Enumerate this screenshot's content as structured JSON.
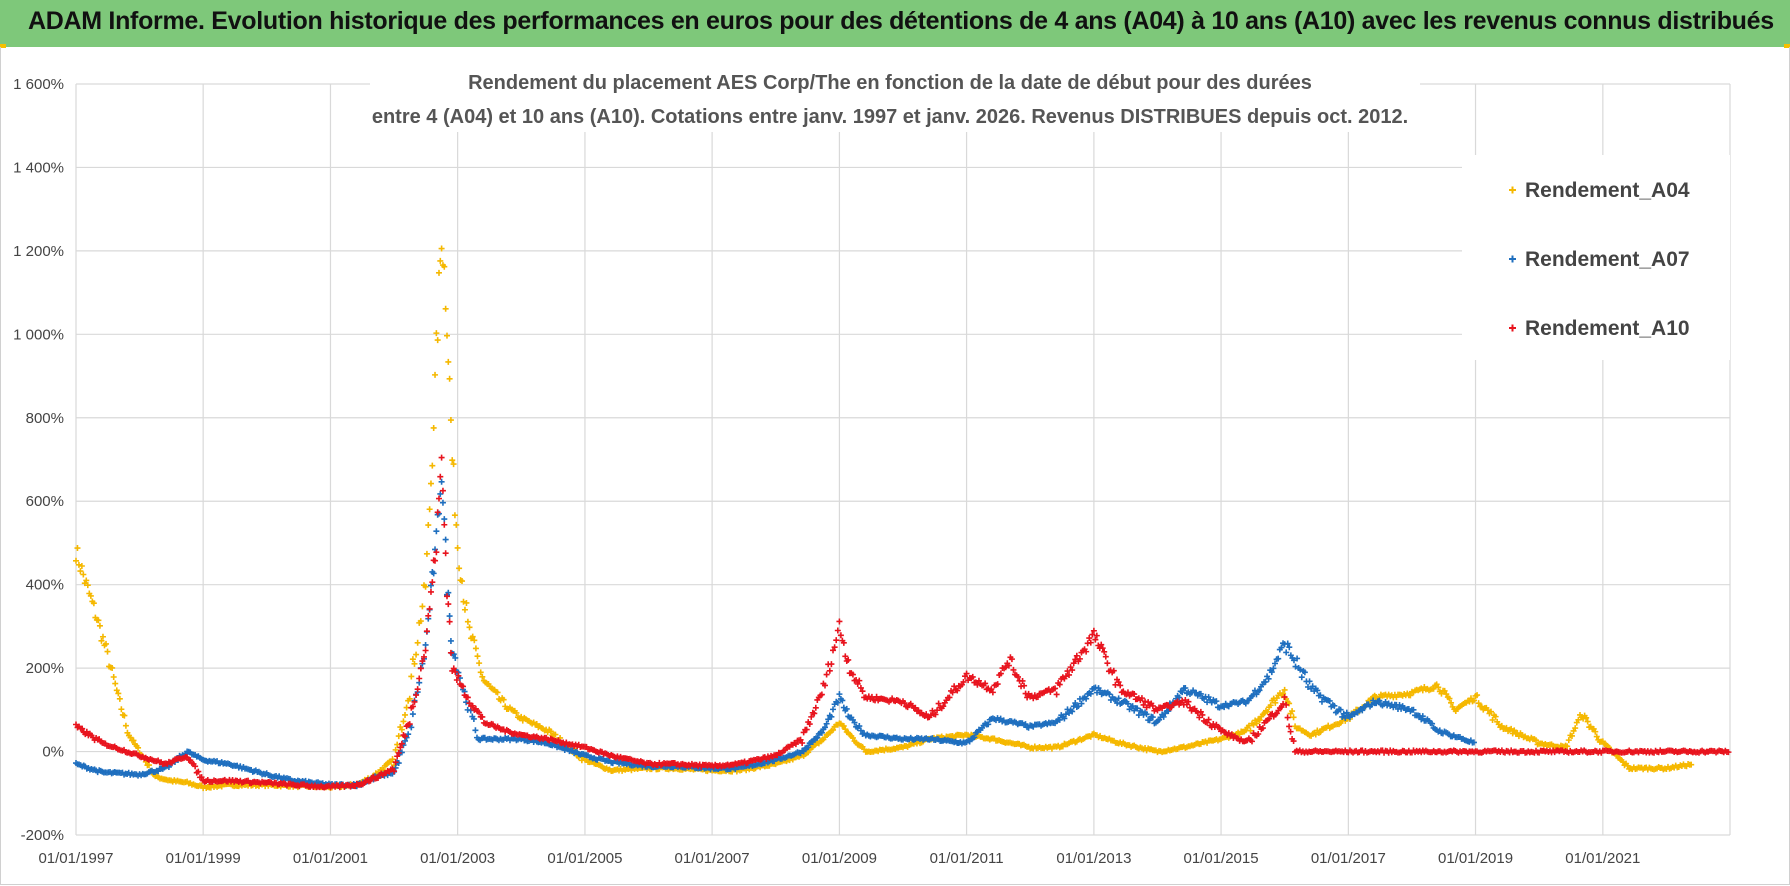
{
  "banner": {
    "title": "ADAM Informe. Evolution historique des performances en euros pour des détentions de 4 ans (A04) à 10 ans (A10) avec les revenus connus distribués"
  },
  "colors": {
    "banner_bg": "#7ec87a",
    "A04": "#f5b800",
    "A07": "#1f6fbf",
    "A10": "#e8141e",
    "grid": "#d9d9d9"
  },
  "chart_data": {
    "type": "scatter",
    "title_line1": "Rendement du placement AES Corp/The en fonction de la date de début pour des durées",
    "title_line2": "entre 4 (A04) et 10 ans (A10).  Cotations entre janv. 1997 et janv. 2026. Revenus DISTRIBUES depuis oct. 2012.",
    "xlabel": "",
    "ylabel": "",
    "x_range": [
      "1997-01-01",
      "2023-01-01"
    ],
    "ylim": [
      -2.0,
      16.0
    ],
    "y_ticks": [
      "-200%",
      "0%",
      "200%",
      "400%",
      "600%",
      "800%",
      "1 000%",
      "1 200%",
      "1 400%",
      "1 600%"
    ],
    "x_ticks": [
      "01/01/1997",
      "01/01/1999",
      "01/01/2001",
      "01/01/2003",
      "01/01/2005",
      "01/01/2007",
      "01/01/2009",
      "01/01/2011",
      "01/01/2013",
      "01/01/2015",
      "01/01/2017",
      "01/01/2019",
      "01/01/2021"
    ],
    "grid": true,
    "legend_position": "top-right",
    "series": [
      {
        "name": "Rendement_A04",
        "points": [
          [
            "1997-01-01",
            4.8
          ],
          [
            "1997-03-01",
            4.0
          ],
          [
            "1997-05-01",
            3.2
          ],
          [
            "1997-07-01",
            2.3
          ],
          [
            "1997-09-01",
            1.3
          ],
          [
            "1997-11-01",
            0.4
          ],
          [
            "1998-01-01",
            0.0
          ],
          [
            "1998-04-01",
            -0.6
          ],
          [
            "1998-07-01",
            -0.7
          ],
          [
            "1998-10-01",
            -0.75
          ],
          [
            "1999-01-01",
            -0.85
          ],
          [
            "1999-06-01",
            -0.8
          ],
          [
            "2000-01-01",
            -0.8
          ],
          [
            "2000-06-01",
            -0.82
          ],
          [
            "2001-01-01",
            -0.85
          ],
          [
            "2001-06-01",
            -0.8
          ],
          [
            "2001-09-01",
            -0.6
          ],
          [
            "2002-01-01",
            -0.2
          ],
          [
            "2002-04-01",
            1.5
          ],
          [
            "2002-07-01",
            4.0
          ],
          [
            "2002-08-01",
            6.5
          ],
          [
            "2002-09-01",
            9.5
          ],
          [
            "2002-10-01",
            12.5
          ],
          [
            "2002-11-01",
            10.5
          ],
          [
            "2002-12-01",
            7.0
          ],
          [
            "2003-01-01",
            5.0
          ],
          [
            "2003-03-01",
            3.0
          ],
          [
            "2003-06-01",
            1.7
          ],
          [
            "2003-10-01",
            1.1
          ],
          [
            "2004-01-01",
            0.8
          ],
          [
            "2004-06-01",
            0.5
          ],
          [
            "2005-01-01",
            -0.2
          ],
          [
            "2005-06-01",
            -0.45
          ],
          [
            "2006-01-01",
            -0.4
          ],
          [
            "2006-06-01",
            -0.4
          ],
          [
            "2007-01-01",
            -0.45
          ],
          [
            "2007-06-01",
            -0.45
          ],
          [
            "2008-01-01",
            -0.3
          ],
          [
            "2008-06-01",
            -0.1
          ],
          [
            "2008-10-01",
            0.3
          ],
          [
            "2009-01-01",
            0.7
          ],
          [
            "2009-03-01",
            0.4
          ],
          [
            "2009-06-01",
            0.0
          ],
          [
            "2010-01-01",
            0.1
          ],
          [
            "2010-06-01",
            0.3
          ],
          [
            "2011-01-01",
            0.4
          ],
          [
            "2011-06-01",
            0.3
          ],
          [
            "2012-01-01",
            0.1
          ],
          [
            "2012-06-01",
            0.1
          ],
          [
            "2013-01-01",
            0.4
          ],
          [
            "2013-06-01",
            0.2
          ],
          [
            "2014-01-01",
            0.0
          ],
          [
            "2014-06-01",
            0.1
          ],
          [
            "2015-01-01",
            0.3
          ],
          [
            "2015-06-01",
            0.5
          ],
          [
            "2016-01-01",
            1.5
          ],
          [
            "2016-03-01",
            0.6
          ],
          [
            "2016-06-01",
            0.4
          ],
          [
            "2017-01-01",
            0.8
          ],
          [
            "2017-06-01",
            1.3
          ],
          [
            "2018-01-01",
            1.4
          ],
          [
            "2018-06-01",
            1.6
          ],
          [
            "2018-09-01",
            1.0
          ],
          [
            "2019-01-01",
            1.3
          ],
          [
            "2019-06-01",
            0.6
          ],
          [
            "2020-01-01",
            0.2
          ],
          [
            "2020-06-01",
            0.1
          ],
          [
            "2020-09-01",
            0.9
          ],
          [
            "2021-01-01",
            0.2
          ],
          [
            "2021-06-01",
            -0.4
          ],
          [
            "2022-01-01",
            -0.4
          ],
          [
            "2022-06-01",
            -0.3
          ]
        ]
      },
      {
        "name": "Rendement_A07",
        "points": [
          [
            "1997-01-01",
            -0.3
          ],
          [
            "1997-06-01",
            -0.5
          ],
          [
            "1998-01-01",
            -0.55
          ],
          [
            "1998-06-01",
            -0.4
          ],
          [
            "1998-10-01",
            0.0
          ],
          [
            "1999-01-01",
            -0.2
          ],
          [
            "1999-06-01",
            -0.3
          ],
          [
            "2000-01-01",
            -0.55
          ],
          [
            "2000-06-01",
            -0.7
          ],
          [
            "2001-01-01",
            -0.8
          ],
          [
            "2001-06-01",
            -0.8
          ],
          [
            "2001-10-01",
            -0.6
          ],
          [
            "2002-01-01",
            -0.5
          ],
          [
            "2002-04-01",
            0.5
          ],
          [
            "2002-07-01",
            2.5
          ],
          [
            "2002-08-01",
            3.8
          ],
          [
            "2002-09-01",
            5.0
          ],
          [
            "2002-10-01",
            6.8
          ],
          [
            "2002-11-01",
            4.0
          ],
          [
            "2002-12-01",
            2.5
          ],
          [
            "2003-02-01",
            1.5
          ],
          [
            "2003-05-01",
            0.3
          ],
          [
            "2003-10-01",
            0.3
          ],
          [
            "2004-01-01",
            0.3
          ],
          [
            "2004-06-01",
            0.2
          ],
          [
            "2005-01-01",
            -0.1
          ],
          [
            "2005-06-01",
            -0.25
          ],
          [
            "2006-01-01",
            -0.35
          ],
          [
            "2006-06-01",
            -0.35
          ],
          [
            "2007-01-01",
            -0.4
          ],
          [
            "2007-06-01",
            -0.4
          ],
          [
            "2008-01-01",
            -0.2
          ],
          [
            "2008-06-01",
            0.0
          ],
          [
            "2008-10-01",
            0.5
          ],
          [
            "2009-01-01",
            1.3
          ],
          [
            "2009-03-01",
            0.8
          ],
          [
            "2009-06-01",
            0.4
          ],
          [
            "2010-01-01",
            0.3
          ],
          [
            "2010-06-01",
            0.3
          ],
          [
            "2011-01-01",
            0.2
          ],
          [
            "2011-06-01",
            0.8
          ],
          [
            "2012-01-01",
            0.6
          ],
          [
            "2012-06-01",
            0.7
          ],
          [
            "2013-01-01",
            1.5
          ],
          [
            "2013-06-01",
            1.2
          ],
          [
            "2014-01-01",
            0.7
          ],
          [
            "2014-06-01",
            1.5
          ],
          [
            "2015-01-01",
            1.1
          ],
          [
            "2015-06-01",
            1.2
          ],
          [
            "2015-10-01",
            1.8
          ],
          [
            "2016-01-01",
            2.6
          ],
          [
            "2016-06-01",
            1.5
          ],
          [
            "2017-01-01",
            0.8
          ],
          [
            "2017-06-01",
            1.2
          ],
          [
            "2018-01-01",
            1.0
          ],
          [
            "2018-06-01",
            0.5
          ],
          [
            "2019-01-01",
            0.2
          ]
        ]
      },
      {
        "name": "Rendement_A10",
        "points": [
          [
            "1997-01-01",
            0.6
          ],
          [
            "1997-06-01",
            0.2
          ],
          [
            "1998-01-01",
            -0.1
          ],
          [
            "1998-06-01",
            -0.3
          ],
          [
            "1998-10-01",
            -0.1
          ],
          [
            "1999-01-01",
            -0.7
          ],
          [
            "1999-06-01",
            -0.7
          ],
          [
            "2000-01-01",
            -0.75
          ],
          [
            "2000-06-01",
            -0.8
          ],
          [
            "2001-01-01",
            -0.85
          ],
          [
            "2001-06-01",
            -0.8
          ],
          [
            "2001-10-01",
            -0.6
          ],
          [
            "2002-01-01",
            -0.4
          ],
          [
            "2002-04-01",
            0.8
          ],
          [
            "2002-07-01",
            2.5
          ],
          [
            "2002-08-01",
            3.8
          ],
          [
            "2002-09-01",
            5.0
          ],
          [
            "2002-10-01",
            7.0
          ],
          [
            "2002-11-01",
            4.0
          ],
          [
            "2002-12-01",
            2.0
          ],
          [
            "2003-02-01",
            1.5
          ],
          [
            "2003-06-01",
            0.7
          ],
          [
            "2003-10-01",
            0.5
          ],
          [
            "2004-01-01",
            0.4
          ],
          [
            "2004-06-01",
            0.3
          ],
          [
            "2005-01-01",
            0.1
          ],
          [
            "2005-06-01",
            -0.1
          ],
          [
            "2006-01-01",
            -0.3
          ],
          [
            "2006-06-01",
            -0.3
          ],
          [
            "2007-01-01",
            -0.35
          ],
          [
            "2007-06-01",
            -0.3
          ],
          [
            "2008-01-01",
            -0.1
          ],
          [
            "2008-06-01",
            0.3
          ],
          [
            "2008-10-01",
            1.5
          ],
          [
            "2009-01-01",
            3.0
          ],
          [
            "2009-03-01",
            2.0
          ],
          [
            "2009-06-01",
            1.3
          ],
          [
            "2010-01-01",
            1.2
          ],
          [
            "2010-06-01",
            0.8
          ],
          [
            "2011-01-01",
            1.8
          ],
          [
            "2011-06-01",
            1.5
          ],
          [
            "2011-09-01",
            2.2
          ],
          [
            "2012-01-01",
            1.3
          ],
          [
            "2012-06-01",
            1.5
          ],
          [
            "2013-01-01",
            2.8
          ],
          [
            "2013-03-01",
            2.3
          ],
          [
            "2013-06-01",
            1.5
          ],
          [
            "2014-01-01",
            1.0
          ],
          [
            "2014-06-01",
            1.2
          ],
          [
            "2015-01-01",
            0.5
          ],
          [
            "2015-06-01",
            0.2
          ],
          [
            "2016-01-01",
            1.2
          ],
          [
            "2016-03-01",
            0.0
          ],
          [
            "2017-01-01",
            0.0
          ],
          [
            "2018-01-01",
            0.0
          ],
          [
            "2019-01-01",
            0.0
          ],
          [
            "2020-01-01",
            0.0
          ],
          [
            "2021-01-01",
            0.0
          ],
          [
            "2022-01-01",
            0.0
          ],
          [
            "2023-01-01",
            0.0
          ]
        ]
      }
    ]
  }
}
